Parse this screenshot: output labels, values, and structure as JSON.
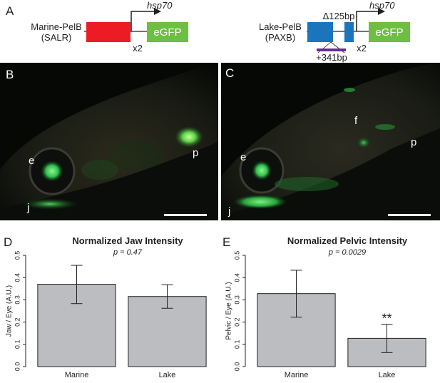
{
  "panels": {
    "a": "A",
    "b": "B",
    "c": "C",
    "d": "D",
    "e": "E"
  },
  "construct_marine": {
    "name_line1": "Marine-PelB",
    "name_line2": "(SALR)",
    "multiplier": "x2",
    "promoter": "hsp70",
    "reporter": "eGFP",
    "enhancer_color": "#ed1c24",
    "reporter_color": "#6fbe44"
  },
  "construct_lake": {
    "name_line1": "Lake-PelB",
    "name_line2": "(PAXB)",
    "deletion": "Δ125bp",
    "insertion": "+341bp",
    "multiplier": "x2",
    "promoter": "hsp70",
    "reporter": "eGFP",
    "enhancer_color": "#1b75bc",
    "insertion_color": "#662d91",
    "reporter_color": "#6fbe44"
  },
  "photo_b": {
    "labels": {
      "e": "e",
      "p": "p",
      "j": "j"
    }
  },
  "photo_c": {
    "labels": {
      "e": "e",
      "f": "f",
      "p": "p",
      "j": "j"
    }
  },
  "chart_data": [
    {
      "type": "bar",
      "title": "Normalized Jaw Intensity",
      "subtitle": "p = 0.47",
      "ylabel": "Jaw / Eye (A.U.)",
      "categories": [
        "Marine",
        "Lake"
      ],
      "values": [
        0.37,
        0.315
      ],
      "error_low": [
        0.283,
        0.262
      ],
      "error_high": [
        0.455,
        0.368
      ],
      "annotations": [
        "",
        ""
      ],
      "ylim": [
        0,
        0.5
      ],
      "yticks": [
        "0.0",
        "0.1",
        "0.2",
        "0.3",
        "0.4",
        "0.5"
      ],
      "bar_color": "#bcbdc0"
    },
    {
      "type": "bar",
      "title": "Normalized Pelvic Intensity",
      "subtitle": "p = 0.0029",
      "ylabel": "Pelvic / Eye (A.U.)",
      "categories": [
        "Marine",
        "Lake"
      ],
      "values": [
        0.328,
        0.127
      ],
      "error_low": [
        0.222,
        0.063
      ],
      "error_high": [
        0.433,
        0.19
      ],
      "annotations": [
        "",
        "**"
      ],
      "ylim": [
        0,
        0.5
      ],
      "yticks": [
        "0.0",
        "0.1",
        "0.2",
        "0.3",
        "0.4",
        "0.5"
      ],
      "bar_color": "#bcbdc0"
    }
  ]
}
